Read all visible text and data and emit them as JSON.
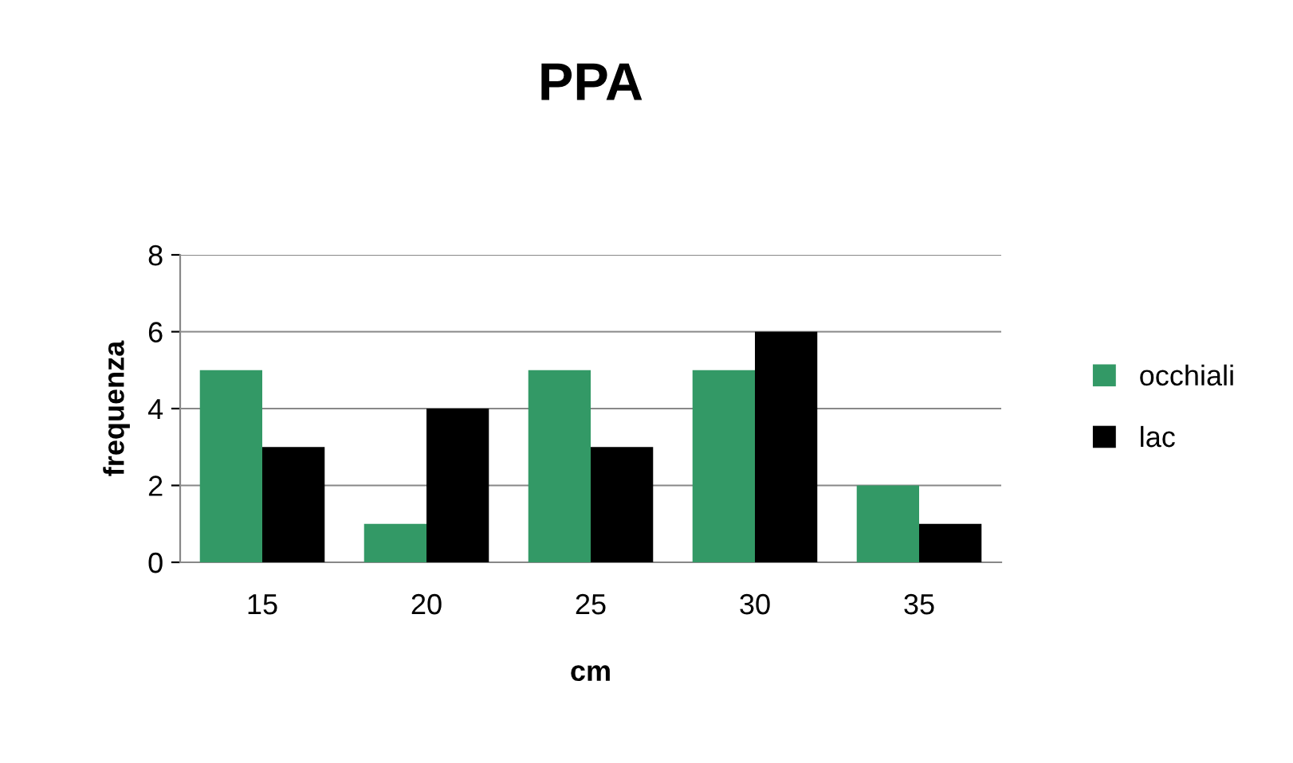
{
  "chart_data": {
    "type": "bar",
    "title": "PPA",
    "xlabel": "cm",
    "ylabel": "frequenza",
    "categories": [
      "15",
      "20",
      "25",
      "30",
      "35"
    ],
    "series": [
      {
        "name": "occhiali",
        "color": "#339966",
        "values": [
          5,
          1,
          5,
          5,
          2
        ]
      },
      {
        "name": "lac",
        "color": "#000000",
        "values": [
          3,
          4,
          3,
          6,
          1
        ]
      }
    ],
    "ylim": [
      0,
      8
    ],
    "yticks": [
      0,
      2,
      4,
      6,
      8
    ],
    "grid": "y",
    "legend": "right"
  }
}
